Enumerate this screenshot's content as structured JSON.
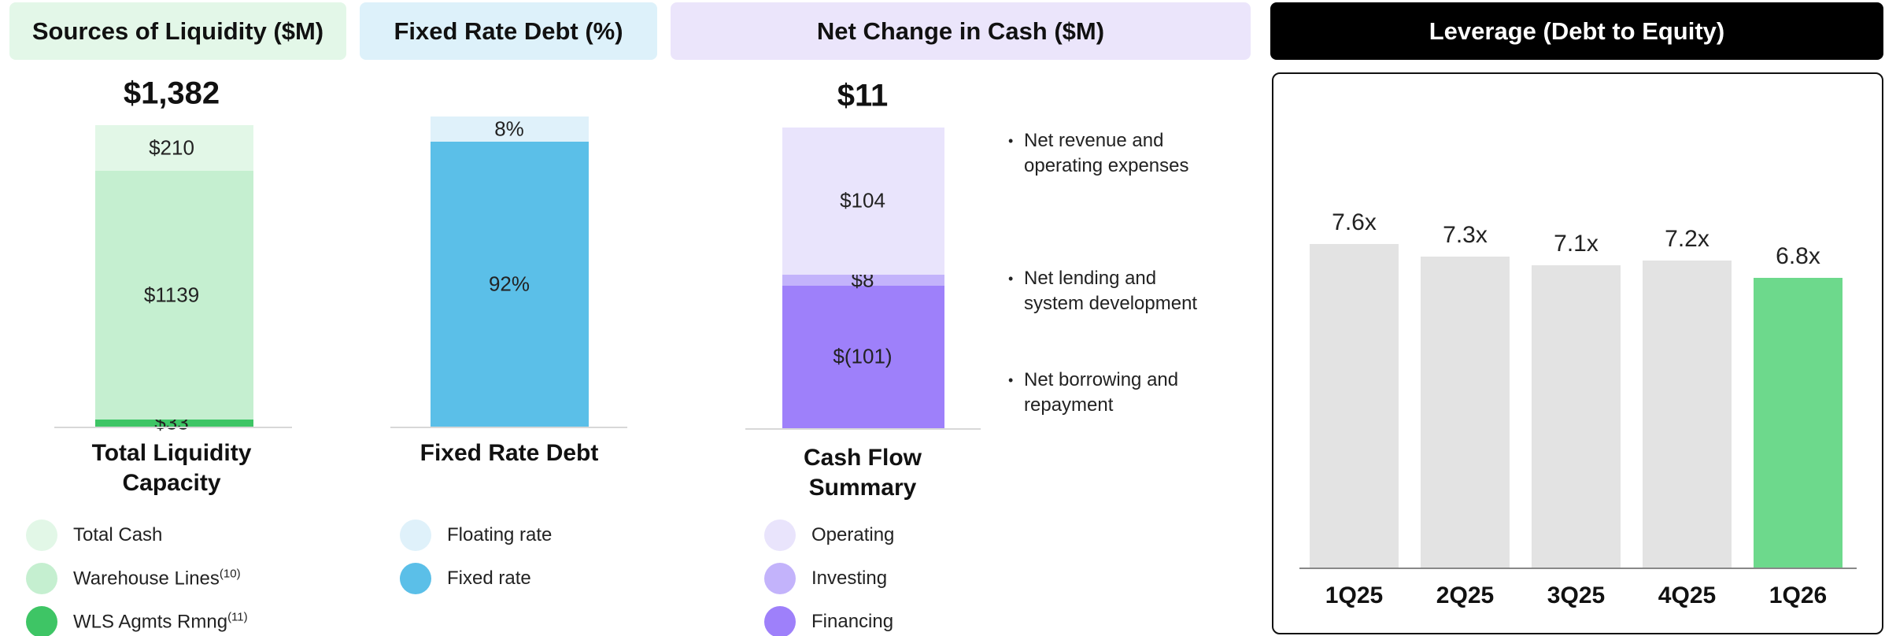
{
  "chart_data": [
    {
      "type": "stacked_bar",
      "title": "Sources of Liquidity ($M)",
      "total": 1382,
      "total_label": "$1,382",
      "categories": [
        "Total Liquidity Capacity"
      ],
      "series": [
        {
          "name": "Total Cash",
          "color": "#e2f7e7",
          "values": [
            210
          ],
          "value_labels": [
            "$210"
          ]
        },
        {
          "name": "Warehouse Lines",
          "footnote": "(10)",
          "color": "#c5efd0",
          "values": [
            1139
          ],
          "value_labels": [
            "$1139"
          ]
        },
        {
          "name": "WLS Agmts Rmng",
          "footnote": "(11)",
          "color": "#3ec565",
          "values": [
            33
          ],
          "value_labels": [
            "$33"
          ]
        }
      ]
    },
    {
      "type": "stacked_bar",
      "title": "Fixed Rate Debt (%)",
      "categories": [
        "Fixed Rate Debt"
      ],
      "series": [
        {
          "name": "Floating rate",
          "color": "#dff1fa",
          "values": [
            8
          ],
          "value_labels": [
            "8%"
          ]
        },
        {
          "name": "Fixed rate",
          "color": "#5bbfe8",
          "values": [
            92
          ],
          "value_labels": [
            "92%"
          ]
        }
      ]
    },
    {
      "type": "stacked_bar",
      "title": "Net Change in Cash ($M)",
      "total": 11,
      "total_label": "$11",
      "categories": [
        "Cash Flow Summary"
      ],
      "series": [
        {
          "name": "Operating",
          "color": "#e9e4fc",
          "values": [
            104
          ],
          "value_labels": [
            "$104"
          ]
        },
        {
          "name": "Investing",
          "color": "#c3b3fb",
          "values": [
            8
          ],
          "value_labels": [
            "$8"
          ]
        },
        {
          "name": "Financing",
          "color": "#9e80fa",
          "values": [
            -101
          ],
          "value_labels": [
            "$(101)"
          ]
        }
      ],
      "annotations": [
        "Net revenue and operating expenses",
        "Net lending and system development",
        "Net borrowing and repayment"
      ]
    },
    {
      "type": "bar",
      "title": "Leverage (Debt to Equity)",
      "categories": [
        "1Q25",
        "2Q25",
        "3Q25",
        "4Q25",
        "1Q26"
      ],
      "values": [
        7.6,
        7.3,
        7.1,
        7.2,
        6.8
      ],
      "value_labels": [
        "7.6x",
        "7.3x",
        "7.1x",
        "7.2x",
        "6.8x"
      ],
      "colors": [
        "#e3e3e3",
        "#e3e3e3",
        "#e3e3e3",
        "#e3e3e3",
        "#6dd98c"
      ]
    }
  ]
}
